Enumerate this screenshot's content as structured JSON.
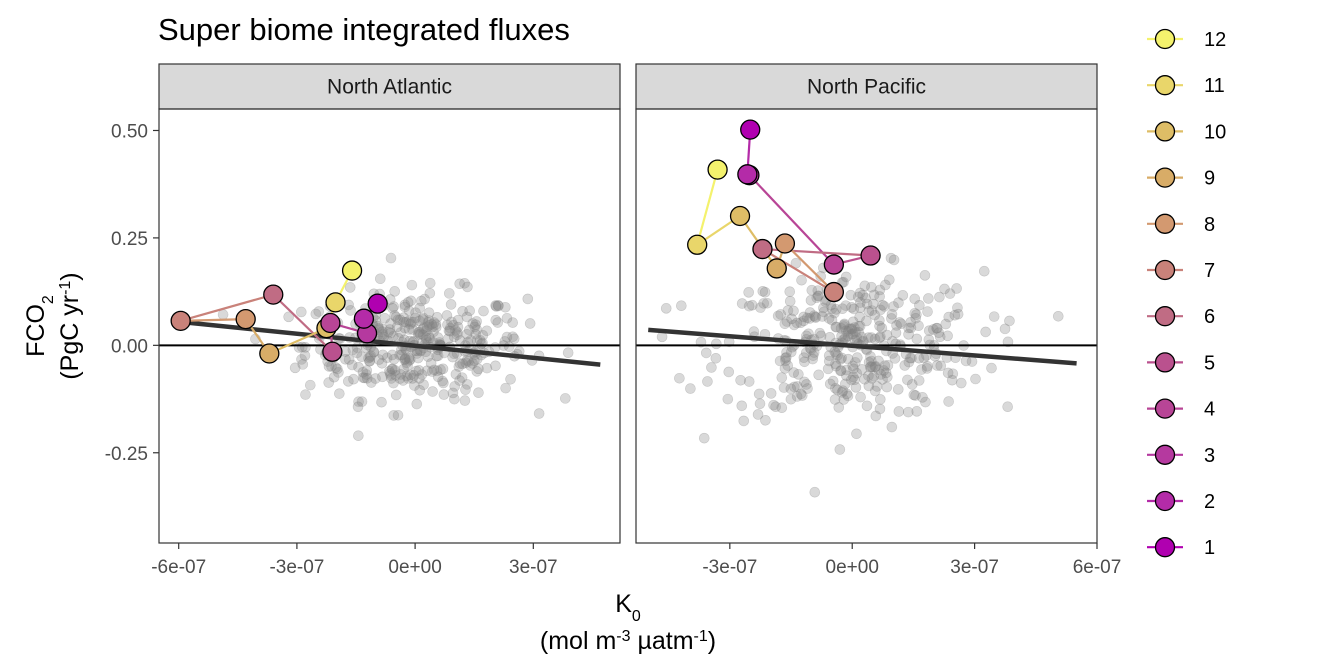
{
  "chart_data": {
    "type": "scatter",
    "title": "Super biome integrated fluxes",
    "xlabel": {
      "line1_main": "K",
      "line1_sub": "0",
      "line2_a": "(mol m",
      "line2_sup1": "-3",
      "line2_b": " µatm",
      "line2_sup2": "-1",
      "line2_c": ")"
    },
    "ylabel": {
      "line1_main": "FCO",
      "line1_sub": "2",
      "line2_a": "(PgC yr",
      "line2_sup": "-1",
      "line2_b": ")"
    },
    "ylim": [
      -0.46,
      0.55
    ],
    "y_ticks": [
      0.5,
      0.25,
      0.0,
      -0.25
    ],
    "y_tick_labels": [
      "0.50",
      "0.25",
      "0.00",
      "-0.25"
    ],
    "hline_y": 0,
    "grid": false,
    "legend_position": "right",
    "month_colors": {
      "1": "#B000B0",
      "2": "#B42BA8",
      "3": "#B5399F",
      "4": "#B84596",
      "5": "#BA518E",
      "6": "#C06C84",
      "7": "#C9827A",
      "8": "#D39970",
      "9": "#D8AC67",
      "10": "#DEBD66",
      "11": "#E9D66A",
      "12": "#F4F26D"
    },
    "legend": [
      {
        "label": "12",
        "month": 12
      },
      {
        "label": "11",
        "month": 11
      },
      {
        "label": "10",
        "month": 10
      },
      {
        "label": "9",
        "month": 9
      },
      {
        "label": "8",
        "month": 8
      },
      {
        "label": "7",
        "month": 7
      },
      {
        "label": "6",
        "month": 6
      },
      {
        "label": "5",
        "month": 5
      },
      {
        "label": "4",
        "month": 4
      },
      {
        "label": "3",
        "month": 3
      },
      {
        "label": "2",
        "month": 2
      },
      {
        "label": "1",
        "month": 1
      }
    ],
    "background_point_color": "#808080",
    "panels": [
      {
        "name": "North Atlantic",
        "xlim": [
          -6.5e-07,
          5.2e-07
        ],
        "x_ticks": [
          -6e-07,
          -3e-07,
          0,
          3e-07
        ],
        "x_tick_labels": [
          "-6e-07",
          "-3e-07",
          "0e+00",
          "3e-07"
        ],
        "regression": {
          "x": [
            -6e-07,
            4.7e-07
          ],
          "y": [
            0.055,
            -0.045
          ]
        },
        "monthly": [
          {
            "month": 1,
            "x": -9.5e-08,
            "y": 0.097
          },
          {
            "month": 2,
            "x": -1.3e-07,
            "y": 0.062
          },
          {
            "month": 3,
            "x": -1.22e-07,
            "y": 0.028
          },
          {
            "month": 4,
            "x": -2.15e-07,
            "y": 0.052
          },
          {
            "month": 5,
            "x": -2.1e-07,
            "y": -0.015
          },
          {
            "month": 6,
            "x": -3.6e-07,
            "y": 0.118
          },
          {
            "month": 7,
            "x": -5.95e-07,
            "y": 0.057
          },
          {
            "month": 8,
            "x": -4.3e-07,
            "y": 0.061
          },
          {
            "month": 9,
            "x": -3.7e-07,
            "y": -0.019
          },
          {
            "month": 10,
            "x": -2.25e-07,
            "y": 0.04
          },
          {
            "month": 11,
            "x": -2.02e-07,
            "y": 0.1
          },
          {
            "month": 12,
            "x": -1.6e-07,
            "y": 0.174
          }
        ],
        "background_summary": {
          "n": 380,
          "x_center": 0.0,
          "x_spread": 1.4e-07,
          "slope": -90000.0,
          "y_center": 0.0,
          "y_spread": 0.062
        }
      },
      {
        "name": "North Pacific",
        "xlim": [
          -5.3e-07,
          6e-07
        ],
        "x_ticks": [
          -3e-07,
          0,
          3e-07,
          6e-07
        ],
        "x_tick_labels": [
          "-3e-07",
          "0e+00",
          "3e-07",
          "6e-07"
        ],
        "regression": {
          "x": [
            -5e-07,
            5.5e-07
          ],
          "y": [
            0.036,
            -0.042
          ]
        },
        "monthly": [
          {
            "month": 1,
            "x": -2.5e-07,
            "y": 0.502
          },
          {
            "month": 2,
            "x": -2.57e-07,
            "y": 0.398
          },
          {
            "month": 3,
            "x": -2.52e-07,
            "y": 0.396
          },
          {
            "month": 4,
            "x": -4.5e-08,
            "y": 0.188
          },
          {
            "month": 5,
            "x": 4.5e-08,
            "y": 0.209
          },
          {
            "month": 6,
            "x": -2.2e-07,
            "y": 0.224
          },
          {
            "month": 7,
            "x": -4.5e-08,
            "y": 0.124
          },
          {
            "month": 8,
            "x": -1.65e-07,
            "y": 0.237
          },
          {
            "month": 9,
            "x": -1.85e-07,
            "y": 0.179
          },
          {
            "month": 10,
            "x": -2.75e-07,
            "y": 0.301
          },
          {
            "month": 11,
            "x": -3.8e-07,
            "y": 0.234
          },
          {
            "month": 12,
            "x": -3.3e-07,
            "y": 0.409
          }
        ],
        "background_summary": {
          "n": 380,
          "x_center": 0.0,
          "x_spread": 1.6e-07,
          "slope": -70000.0,
          "y_center": 0.0,
          "y_spread": 0.085
        }
      }
    ]
  }
}
